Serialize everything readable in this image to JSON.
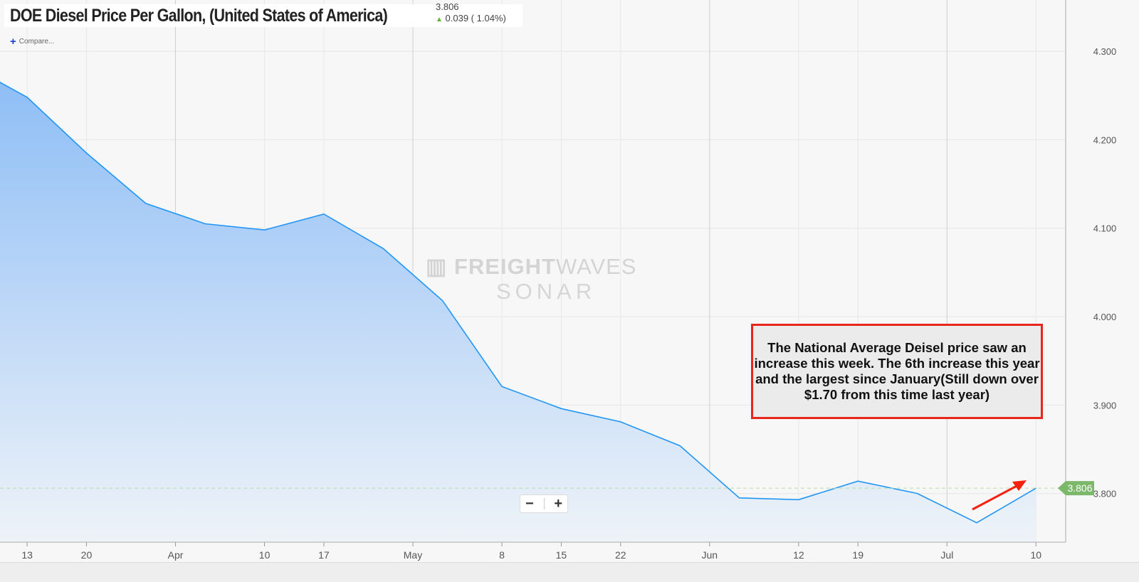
{
  "header": {
    "title": "DOE Diesel Price Per Gallon, (United States of America)",
    "last_value": "3.806",
    "change": "0.039 ( 1.04%)",
    "change_icon": "arrow-up-icon",
    "compare_label": "Compare..."
  },
  "watermark": {
    "line1a": "FREIGHT",
    "line1b": "WAVES",
    "line2": "SONAR"
  },
  "annotation": "The National Average Deisel price saw an increase this week. The 6th increase this year and the largest since January(Still down over $1.70 from this time last year)",
  "zoom_controls": {
    "minus": "−",
    "plus": "+"
  },
  "colors": {
    "line": "#2196f3",
    "annotation_border": "#e8261c",
    "last_price_badge": "#7cb86a",
    "arrow": "#f5210f"
  },
  "chart_data": {
    "type": "area",
    "title": "DOE Diesel Price Per Gallon, (United States of America)",
    "xlabel": "",
    "ylabel": "",
    "x_unit": "days since Mar 13",
    "x": [
      -7,
      0,
      7,
      14,
      21,
      28,
      35,
      42,
      49,
      56,
      63,
      70,
      77,
      84,
      91,
      98,
      105,
      112,
      119
    ],
    "values": [
      4.285,
      4.248,
      4.185,
      4.128,
      4.105,
      4.098,
      4.116,
      4.077,
      4.018,
      3.921,
      3.896,
      3.881,
      3.854,
      3.795,
      3.793,
      3.814,
      3.8,
      3.767,
      3.806
    ],
    "xlim": [
      -3.2,
      122.5
    ],
    "ylim": [
      3.745,
      4.358
    ],
    "yticks": [
      {
        "v": 4.3,
        "label": "4.300"
      },
      {
        "v": 4.2,
        "label": "4.200"
      },
      {
        "v": 4.1,
        "label": "4.100"
      },
      {
        "v": 4.0,
        "label": "4.000"
      },
      {
        "v": 3.9,
        "label": "3.900"
      },
      {
        "v": 3.8,
        "label": "3.800"
      }
    ],
    "xticks": [
      {
        "d": 0,
        "label": "13",
        "major": false
      },
      {
        "d": 7,
        "label": "20",
        "major": false
      },
      {
        "d": 17.5,
        "label": "Apr",
        "major": true
      },
      {
        "d": 28,
        "label": "10",
        "major": false
      },
      {
        "d": 35,
        "label": "17",
        "major": false
      },
      {
        "d": 45.5,
        "label": "May",
        "major": true
      },
      {
        "d": 56,
        "label": "8",
        "major": false
      },
      {
        "d": 63,
        "label": "15",
        "major": false
      },
      {
        "d": 70,
        "label": "22",
        "major": false
      },
      {
        "d": 80.5,
        "label": "Jun",
        "major": true
      },
      {
        "d": 91,
        "label": "12",
        "major": false
      },
      {
        "d": 98,
        "label": "19",
        "major": false
      },
      {
        "d": 108.5,
        "label": "Jul",
        "major": true
      },
      {
        "d": 119,
        "label": "10",
        "major": false
      }
    ],
    "last_price_label": "3.806",
    "grid": true,
    "legend": "none"
  }
}
